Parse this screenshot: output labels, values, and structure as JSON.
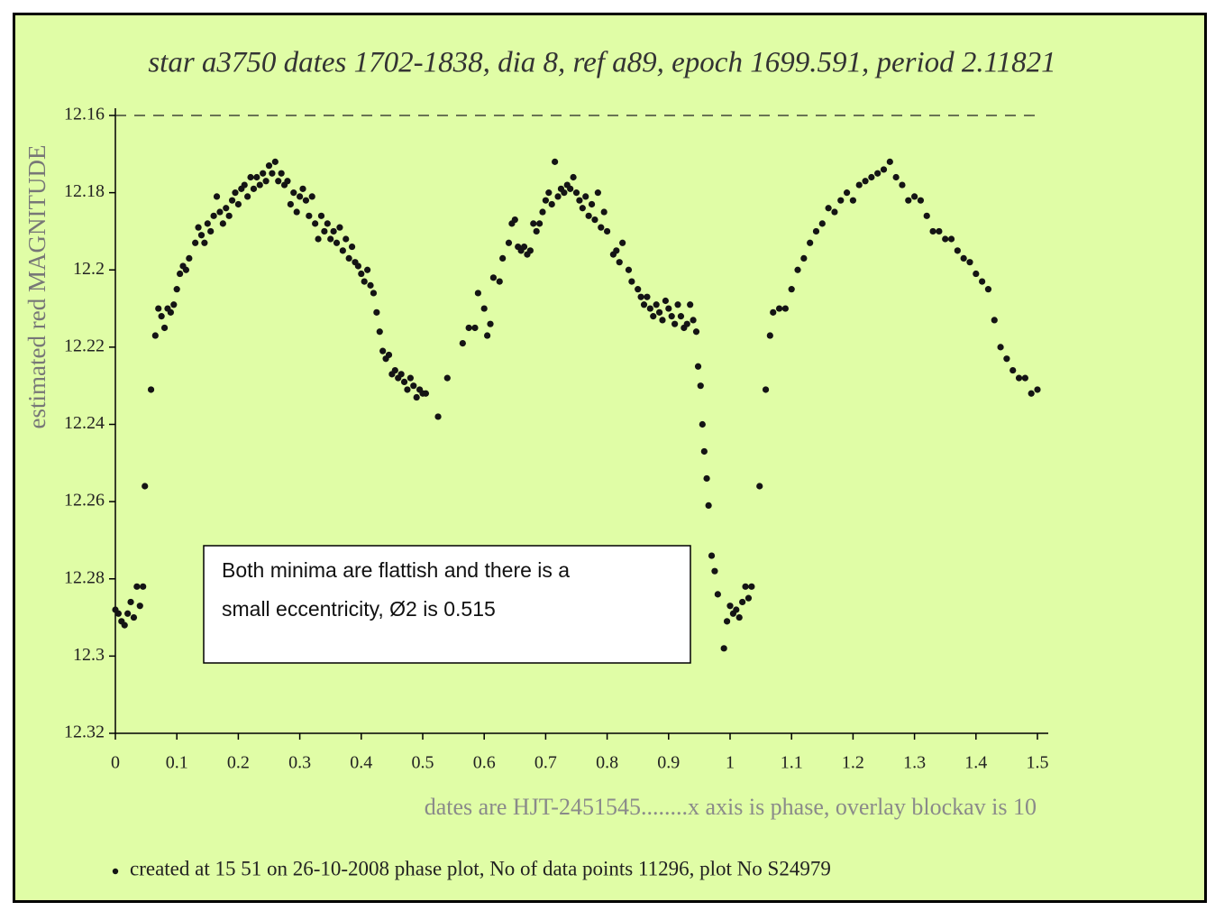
{
  "chart_data": {
    "type": "scatter",
    "title": "star a3750 dates 1702-1838, dia 8, ref a89, epoch 1699.591, period 2.11821",
    "y_label": "estimated red MAGNITUDE",
    "x_label": "dates are HJT-2451545........x axis is phase, overlay blockav is 10",
    "footer": "created at 15 51 on 26-10-2008 phase plot, No of data points 11296,  plot No S24979",
    "annotation": [
      "Both minima are flattish and there is a",
      "small eccentricity, Ø2 is 0.515"
    ],
    "color": "#141414",
    "xlim": [
      0,
      1.5
    ],
    "xticks": [
      0,
      0.1,
      0.2,
      0.3,
      0.4,
      0.5,
      0.6,
      0.7,
      0.8,
      0.9,
      1,
      1.1,
      1.2,
      1.3,
      1.4,
      1.5
    ],
    "ylim": [
      12.32,
      12.16
    ],
    "yticks": [
      12.16,
      12.18,
      12.2,
      12.22,
      12.24,
      12.26,
      12.28,
      12.3,
      12.32
    ],
    "x": [
      0,
      0.005,
      0.01,
      0.015,
      0.02,
      0.025,
      0.03,
      0.035,
      0.04,
      0.045,
      0.048,
      0.058,
      0.065,
      0.07,
      0.075,
      0.08,
      0.085,
      0.09,
      0.095,
      0.1,
      0.105,
      0.11,
      0.115,
      0.12,
      0.13,
      0.135,
      0.14,
      0.145,
      0.15,
      0.155,
      0.16,
      0.165,
      0.17,
      0.175,
      0.18,
      0.185,
      0.19,
      0.195,
      0.2,
      0.205,
      0.21,
      0.215,
      0.22,
      0.225,
      0.23,
      0.235,
      0.24,
      0.245,
      0.25,
      0.255,
      0.26,
      0.265,
      0.27,
      0.275,
      0.28,
      0.285,
      0.29,
      0.295,
      0.3,
      0.305,
      0.31,
      0.315,
      0.32,
      0.325,
      0.33,
      0.335,
      0.34,
      0.345,
      0.35,
      0.355,
      0.36,
      0.365,
      0.37,
      0.375,
      0.38,
      0.385,
      0.39,
      0.395,
      0.4,
      0.405,
      0.41,
      0.415,
      0.42,
      0.425,
      0.43,
      0.435,
      0.44,
      0.445,
      0.45,
      0.455,
      0.46,
      0.465,
      0.47,
      0.475,
      0.48,
      0.485,
      0.49,
      0.495,
      0.5,
      0.505,
      0.525,
      0.54,
      0.565,
      0.575,
      0.585,
      0.59,
      0.6,
      0.605,
      0.61,
      0.615,
      0.625,
      0.63,
      0.64,
      0.645,
      0.65,
      0.655,
      0.66,
      0.665,
      0.67,
      0.675,
      0.68,
      0.685,
      0.69,
      0.695,
      0.7,
      0.705,
      0.71,
      0.715,
      0.72,
      0.725,
      0.73,
      0.735,
      0.74,
      0.745,
      0.75,
      0.755,
      0.76,
      0.765,
      0.77,
      0.775,
      0.78,
      0.785,
      0.79,
      0.795,
      0.8,
      0.81,
      0.815,
      0.82,
      0.825,
      0.835,
      0.84,
      0.85,
      0.855,
      0.86,
      0.865,
      0.87,
      0.875,
      0.88,
      0.885,
      0.89,
      0.895,
      0.9,
      0.905,
      0.91,
      0.915,
      0.92,
      0.925,
      0.93,
      0.935,
      0.94,
      0.945,
      0.948,
      0.952,
      0.955,
      0.958,
      0.962,
      0.965,
      0.97,
      0.975,
      0.98,
      0.99,
      0.995,
      1,
      1.005,
      1.01,
      1.015,
      1.02,
      1.025,
      1.03,
      1.035,
      1.048,
      1.058,
      1.065,
      1.07,
      1.08,
      1.09,
      1.1,
      1.11,
      1.12,
      1.13,
      1.14,
      1.15,
      1.16,
      1.17,
      1.18,
      1.19,
      1.2,
      1.21,
      1.22,
      1.23,
      1.24,
      1.25,
      1.26,
      1.27,
      1.28,
      1.29,
      1.3,
      1.31,
      1.32,
      1.33,
      1.34,
      1.35,
      1.36,
      1.37,
      1.38,
      1.39,
      1.4,
      1.41,
      1.42,
      1.43,
      1.44,
      1.45,
      1.46,
      1.47,
      1.48,
      1.49,
      1.5
    ],
    "values": [
      12.288,
      12.289,
      12.291,
      12.292,
      12.289,
      12.286,
      12.29,
      12.282,
      12.287,
      12.282,
      12.256,
      12.231,
      12.217,
      12.21,
      12.212,
      12.215,
      12.21,
      12.211,
      12.209,
      12.205,
      12.201,
      12.199,
      12.2,
      12.197,
      12.193,
      12.189,
      12.191,
      12.193,
      12.188,
      12.19,
      12.186,
      12.181,
      12.185,
      12.188,
      12.184,
      12.186,
      12.182,
      12.18,
      12.183,
      12.179,
      12.178,
      12.181,
      12.176,
      12.179,
      12.176,
      12.178,
      12.175,
      12.177,
      12.173,
      12.175,
      12.172,
      12.177,
      12.175,
      12.178,
      12.177,
      12.183,
      12.18,
      12.185,
      12.181,
      12.179,
      12.182,
      12.186,
      12.181,
      12.188,
      12.192,
      12.186,
      12.19,
      12.188,
      12.192,
      12.19,
      12.193,
      12.189,
      12.195,
      12.192,
      12.197,
      12.194,
      12.198,
      12.199,
      12.201,
      12.203,
      12.2,
      12.204,
      12.206,
      12.211,
      12.216,
      12.221,
      12.223,
      12.222,
      12.227,
      12.226,
      12.228,
      12.227,
      12.229,
      12.231,
      12.228,
      12.23,
      12.233,
      12.231,
      12.232,
      12.232,
      12.238,
      12.228,
      12.219,
      12.215,
      12.215,
      12.206,
      12.21,
      12.217,
      12.214,
      12.202,
      12.203,
      12.197,
      12.193,
      12.188,
      12.187,
      12.194,
      12.195,
      12.194,
      12.196,
      12.195,
      12.188,
      12.19,
      12.188,
      12.185,
      12.182,
      12.18,
      12.183,
      12.172,
      12.181,
      12.179,
      12.18,
      12.178,
      12.179,
      12.176,
      12.18,
      12.182,
      12.184,
      12.181,
      12.186,
      12.183,
      12.187,
      12.18,
      12.189,
      12.185,
      12.19,
      12.196,
      12.195,
      12.198,
      12.193,
      12.2,
      12.203,
      12.205,
      12.207,
      12.209,
      12.207,
      12.21,
      12.212,
      12.209,
      12.211,
      12.213,
      12.208,
      12.21,
      12.212,
      12.214,
      12.209,
      12.212,
      12.215,
      12.214,
      12.209,
      12.213,
      12.216,
      12.225,
      12.23,
      12.24,
      12.247,
      12.254,
      12.261,
      12.274,
      12.278,
      12.284,
      12.298,
      12.291,
      12.287,
      12.289,
      12.288,
      12.29,
      12.286,
      12.282,
      12.285,
      12.282,
      12.256,
      12.231,
      12.217,
      12.211,
      12.21,
      12.21,
      12.205,
      12.2,
      12.197,
      12.193,
      12.19,
      12.188,
      12.184,
      12.185,
      12.182,
      12.18,
      12.182,
      12.178,
      12.177,
      12.176,
      12.175,
      12.174,
      12.172,
      12.176,
      12.178,
      12.182,
      12.181,
      12.182,
      12.186,
      12.19,
      12.19,
      12.192,
      12.192,
      12.195,
      12.197,
      12.198,
      12.201,
      12.203,
      12.205,
      12.213,
      12.22,
      12.223,
      12.226,
      12.228,
      12.228,
      12.232,
      12.231
    ]
  }
}
